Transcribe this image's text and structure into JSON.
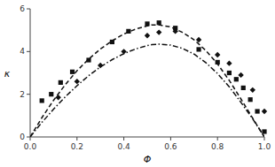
{
  "chart_data": {
    "type": "line",
    "xlabel": "Φ",
    "ylabel": "κ",
    "xlim": [
      0,
      1.0
    ],
    "ylim": [
      0,
      6
    ],
    "xticks": [
      {
        "value": 0,
        "label": "0.0"
      },
      0.2,
      0.4,
      0.6,
      0.8,
      {
        "value": 1.0,
        "label": "1.0"
      }
    ],
    "yticks": [
      0,
      2,
      4,
      6
    ],
    "series": [
      {
        "type": "line",
        "line_style": "dashed",
        "color": "#111111",
        "x": [
          0.0,
          0.05,
          0.1,
          0.15,
          0.2,
          0.25,
          0.3,
          0.35,
          0.4,
          0.45,
          0.5,
          0.52,
          0.55,
          0.6,
          0.65,
          0.7,
          0.75,
          0.8,
          0.85,
          0.9,
          0.95,
          1.0
        ],
        "values": [
          0.0,
          0.9,
          1.72,
          2.45,
          3.1,
          3.65,
          4.12,
          4.5,
          4.82,
          5.05,
          5.2,
          5.25,
          5.25,
          5.15,
          4.9,
          4.55,
          4.05,
          3.42,
          2.65,
          1.78,
          0.88,
          0.0
        ]
      },
      {
        "type": "line",
        "line_style": "dashdot",
        "color": "#111111",
        "x": [
          0.0,
          0.05,
          0.1,
          0.15,
          0.2,
          0.25,
          0.3,
          0.35,
          0.4,
          0.45,
          0.5,
          0.52,
          0.55,
          0.6,
          0.65,
          0.7,
          0.75,
          0.8,
          0.85,
          0.9,
          0.95,
          1.0
        ],
        "values": [
          0.0,
          0.68,
          1.3,
          1.88,
          2.4,
          2.87,
          3.28,
          3.62,
          3.9,
          4.12,
          4.28,
          4.32,
          4.35,
          4.3,
          4.15,
          3.88,
          3.48,
          2.97,
          2.35,
          1.62,
          0.85,
          0.0
        ]
      },
      {
        "type": "scatter",
        "marker": "square",
        "color": "#111111",
        "x": [
          0.05,
          0.09,
          0.13,
          0.18,
          0.25,
          0.35,
          0.42,
          0.5,
          0.55,
          0.62,
          0.72,
          0.8,
          0.85,
          0.88,
          0.91,
          0.94,
          0.97,
          1.0
        ],
        "values": [
          1.7,
          2.0,
          2.55,
          3.05,
          3.6,
          4.45,
          4.95,
          5.3,
          5.35,
          5.1,
          4.1,
          3.5,
          3.0,
          2.7,
          2.3,
          1.75,
          1.2,
          0.25
        ]
      },
      {
        "type": "scatter",
        "marker": "diamond",
        "color": "#111111",
        "x": [
          0.12,
          0.2,
          0.3,
          0.4,
          0.5,
          0.55,
          0.62,
          0.72,
          0.8,
          0.85,
          0.9,
          0.95,
          1.0
        ],
        "values": [
          1.85,
          2.6,
          3.35,
          4.0,
          4.75,
          4.9,
          4.95,
          4.55,
          3.85,
          3.45,
          2.9,
          2.2,
          1.2
        ]
      }
    ]
  }
}
